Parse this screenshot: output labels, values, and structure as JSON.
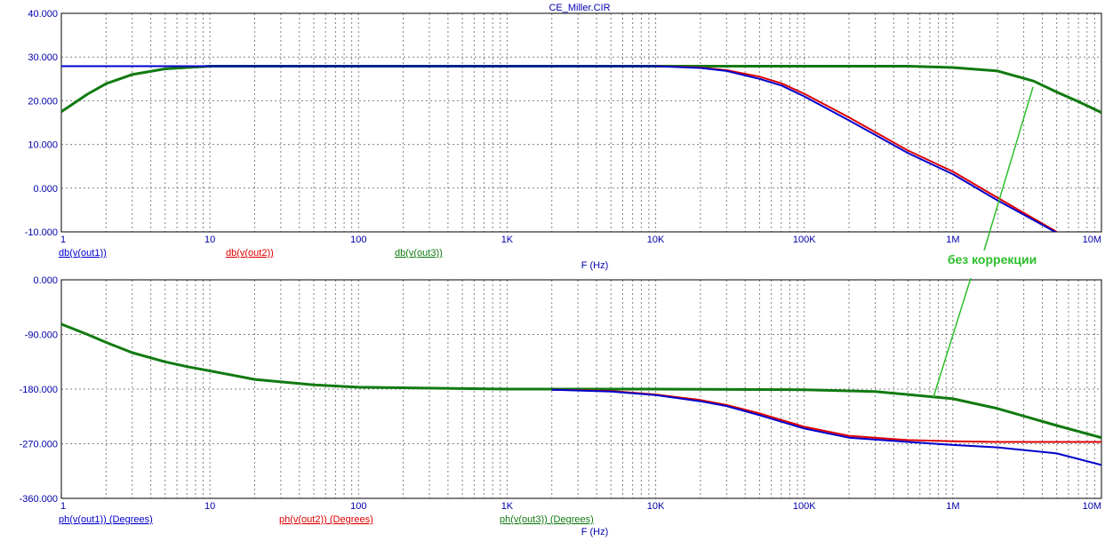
{
  "window_title": "CE_Miller.CIR",
  "colors": {
    "axis_text": "#0000aa",
    "out1": "#0000cc",
    "out2": "#dd0000",
    "out3": "#117a11",
    "grid": "#808080"
  },
  "annotation": {
    "text": "без коррекции",
    "color": "#2bbf2b"
  },
  "chart_data": [
    {
      "type": "line",
      "title": "CE_Miller.CIR",
      "xlabel": "F (Hz)",
      "x_scale": "log",
      "xlim": [
        1,
        10000000
      ],
      "x_tick_labels": [
        "1",
        "10",
        "100",
        "1K",
        "10K",
        "100K",
        "1M",
        "10M"
      ],
      "ylim": [
        -10,
        40
      ],
      "y_tick_labels": [
        "40.000",
        "30.000",
        "20.000",
        "10.000",
        "0.000",
        "-10.000"
      ],
      "grid": true,
      "series": [
        {
          "name": "db(v(out1))",
          "color": "#0000cc",
          "x": [
            1,
            2,
            5,
            10,
            100,
            1000,
            10000,
            20000,
            30000,
            50000,
            70000,
            100000,
            200000,
            500000,
            1000000,
            2000000,
            5000000
          ],
          "y": [
            27.9,
            27.9,
            27.9,
            27.9,
            27.9,
            27.9,
            27.9,
            27.5,
            26.8,
            25.0,
            23.5,
            21.0,
            15.5,
            8.0,
            3.2,
            -2.8,
            -10.2
          ]
        },
        {
          "name": "db(v(out2))",
          "color": "#dd0000",
          "x": [
            1,
            2,
            5,
            10,
            100,
            1000,
            10000,
            20000,
            30000,
            50000,
            70000,
            100000,
            200000,
            500000,
            1000000,
            2000000,
            5000000
          ],
          "y": [
            27.9,
            27.9,
            27.9,
            27.9,
            27.9,
            27.9,
            27.9,
            27.6,
            27.0,
            25.5,
            24.0,
            21.6,
            16.2,
            8.6,
            3.8,
            -2.2,
            -10.0
          ]
        },
        {
          "name": "db(v(out3))",
          "color": "#117a11",
          "x": [
            1,
            1.5,
            2,
            3,
            5,
            10,
            100,
            1000,
            10000,
            100000,
            500000,
            1000000,
            2000000,
            3500000,
            5000000,
            7000000,
            10000000
          ],
          "y": [
            17.5,
            21.5,
            23.9,
            26.0,
            27.3,
            27.9,
            27.9,
            27.9,
            27.9,
            27.9,
            27.9,
            27.6,
            26.8,
            24.5,
            22.0,
            19.8,
            17.3
          ]
        }
      ]
    },
    {
      "type": "line",
      "xlabel": "F (Hz)",
      "x_scale": "log",
      "xlim": [
        1,
        10000000
      ],
      "x_tick_labels": [
        "1",
        "10",
        "100",
        "1K",
        "10K",
        "100K",
        "1M",
        "10M"
      ],
      "ylim": [
        -360,
        0
      ],
      "y_tick_labels": [
        "0.000",
        "-90.000",
        "-180.000",
        "-270.000",
        "-360.000"
      ],
      "grid": true,
      "series": [
        {
          "name": "ph(v(out1)) (Degrees)",
          "color": "#0000cc",
          "x": [
            2000,
            5000,
            10000,
            20000,
            30000,
            50000,
            100000,
            200000,
            500000,
            1000000,
            2000000,
            5000000,
            10000000
          ],
          "y": [
            -181,
            -184,
            -190,
            -200,
            -208,
            -223,
            -245,
            -260,
            -267,
            -272,
            -276,
            -286,
            -305
          ]
        },
        {
          "name": "ph(v(out2)) (Degrees)",
          "color": "#dd0000",
          "x": [
            2000,
            5000,
            10000,
            20000,
            30000,
            50000,
            100000,
            200000,
            500000,
            1000000,
            2000000,
            5000000,
            10000000
          ],
          "y": [
            -181,
            -183,
            -189,
            -198,
            -206,
            -220,
            -242,
            -257,
            -264,
            -266,
            -267,
            -267,
            -267
          ]
        },
        {
          "name": "ph(v(out3)) (Degrees)",
          "color": "#117a11",
          "x": [
            1,
            1.5,
            2,
            3,
            5,
            7,
            10,
            20,
            50,
            100,
            1000,
            10000,
            100000,
            300000,
            1000000,
            2000000,
            5000000,
            10000000
          ],
          "y": [
            -73,
            -90,
            -103,
            -120,
            -135,
            -143,
            -150,
            -164,
            -173,
            -177,
            -180,
            -180,
            -181,
            -184,
            -196,
            -212,
            -240,
            -260
          ]
        }
      ]
    }
  ]
}
